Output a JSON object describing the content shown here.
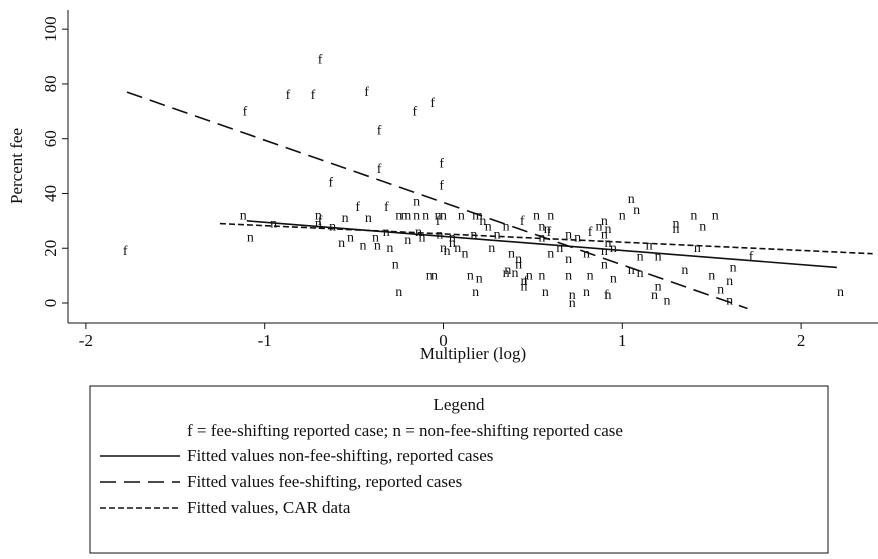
{
  "chart_data": {
    "type": "scatter",
    "xlabel": "Multiplier (log)",
    "ylabel": "Percent fee",
    "xlim": [
      -2.1,
      2.43
    ],
    "ylim": [
      -7.3,
      107
    ],
    "xticks": [
      -2,
      -1,
      0,
      1,
      2
    ],
    "yticks": [
      0,
      20,
      40,
      60,
      80,
      100
    ],
    "series": [
      {
        "marker": "f",
        "color": "#111111",
        "x": [
          -1.78,
          -1.11,
          -0.87,
          -0.73,
          -0.69,
          -0.63,
          -0.43,
          -0.36,
          -0.36,
          -0.16,
          -0.06,
          -0.01,
          -0.01,
          -0.32,
          -0.03,
          -0.48,
          0.44,
          0.82,
          0.91,
          1.72,
          -0.69,
          0.59,
          0.46
        ],
        "values": [
          19,
          70,
          76,
          76,
          89,
          44,
          77,
          63,
          49,
          70,
          73,
          51,
          43,
          35,
          30,
          35,
          30,
          26,
          3,
          17,
          30,
          26,
          8
        ]
      },
      {
        "marker": "n",
        "color": "#111111",
        "x": [
          -1.12,
          -1.08,
          -0.95,
          -0.7,
          -0.7,
          -0.62,
          -0.55,
          -0.57,
          -0.52,
          -0.42,
          -0.45,
          -0.38,
          -0.37,
          -0.32,
          -0.3,
          -0.27,
          -0.25,
          -0.22,
          -0.2,
          -0.15,
          -0.15,
          -0.14,
          -0.12,
          -0.25,
          -0.2,
          -0.1,
          -0.08,
          -0.05,
          -0.03,
          0.0,
          0.0,
          0.02,
          -0.02,
          0.05,
          0.05,
          0.1,
          0.08,
          0.12,
          0.18,
          0.2,
          0.22,
          0.25,
          0.17,
          0.15,
          0.2,
          0.18,
          0.27,
          0.3,
          0.35,
          0.35,
          0.36,
          0.4,
          0.38,
          0.42,
          0.42,
          0.45,
          0.45,
          0.48,
          0.52,
          0.55,
          0.55,
          0.58,
          0.6,
          0.6,
          0.55,
          0.57,
          0.65,
          0.7,
          0.7,
          0.7,
          0.72,
          0.72,
          0.75,
          0.8,
          0.82,
          0.8,
          0.87,
          0.9,
          0.9,
          0.92,
          0.92,
          0.9,
          0.95,
          0.9,
          0.95,
          0.92,
          1.0,
          1.05,
          1.08,
          1.05,
          1.1,
          1.1,
          1.15,
          1.2,
          1.2,
          1.25,
          1.18,
          1.3,
          1.3,
          1.35,
          1.4,
          1.42,
          1.45,
          1.5,
          1.52,
          1.55,
          1.6,
          1.62,
          1.6,
          2.22
        ],
        "values": [
          32,
          24,
          29,
          32,
          29,
          28,
          31,
          22,
          24,
          31,
          21,
          24,
          21,
          26,
          20,
          14,
          32,
          32,
          32,
          37,
          32,
          26,
          24,
          4,
          23,
          32,
          10,
          10,
          32,
          32,
          20,
          19,
          25,
          24,
          22,
          32,
          20,
          18,
          32,
          32,
          30,
          28,
          25,
          10,
          9,
          4,
          20,
          25,
          28,
          11,
          12,
          11,
          18,
          14,
          16,
          8,
          6,
          10,
          32,
          28,
          24,
          27,
          32,
          18,
          10,
          4,
          20,
          25,
          16,
          10,
          3,
          0,
          24,
          18,
          10,
          4,
          28,
          30,
          25,
          22,
          27,
          19,
          20,
          14,
          9,
          3,
          32,
          38,
          34,
          12,
          17,
          11,
          21,
          17,
          6,
          1,
          3,
          27,
          29,
          12,
          32,
          20,
          28,
          10,
          32,
          5,
          8,
          13,
          1,
          4
        ]
      },
      {
        "name": "Fitted values non-fee-shifting, reported cases",
        "color": "#111111",
        "dash": "solid",
        "x": [
          -1.1,
          2.2
        ],
        "values": [
          30,
          13
        ]
      },
      {
        "name": "Fitted values fee-shifting, reported cases",
        "color": "#111111",
        "dash": "long",
        "x": [
          -1.77,
          1.7
        ],
        "values": [
          77,
          -2
        ]
      },
      {
        "name": "Fitted values, CAR data",
        "color": "#111111",
        "dash": "short",
        "x": [
          -1.25,
          2.4
        ],
        "values": [
          29,
          18
        ]
      }
    ],
    "legend": {
      "title": "Legend",
      "key": "f = fee-shifting reported case;   n = non-fee-shifting reported case"
    }
  }
}
